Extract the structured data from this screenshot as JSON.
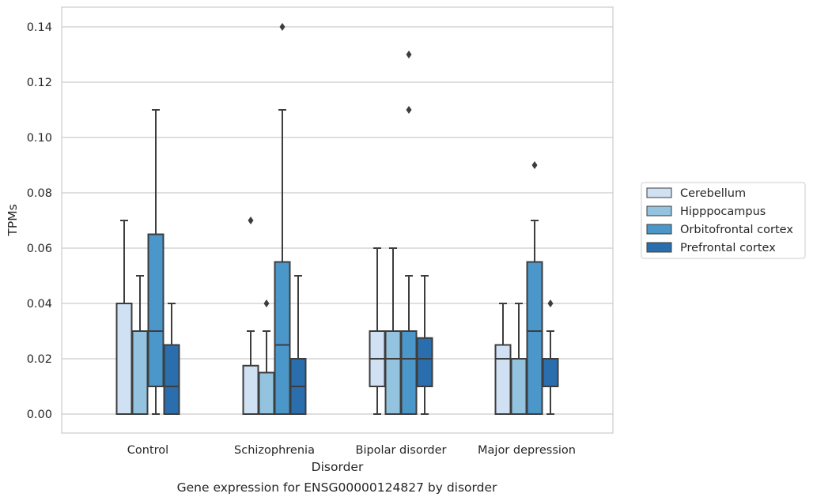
{
  "caption": "Gene expression for ENSG00000124827 by disorder",
  "chart_data": {
    "type": "boxplot",
    "xlabel": "Disorder",
    "ylabel": "TPMs",
    "ylim": [
      -0.007,
      0.147
    ],
    "yticks": [
      "0.00",
      "0.02",
      "0.04",
      "0.06",
      "0.08",
      "0.10",
      "0.12",
      "0.14"
    ],
    "grid": "horizontal",
    "legend_position": "right",
    "categories": [
      "Control",
      "Schizophrenia",
      "Bipolar disorder",
      "Major depression"
    ],
    "series": [
      {
        "name": "Cerebellum",
        "color": "#cfe1f2",
        "boxes": [
          {
            "q1": 0.0,
            "median": 0.0,
            "q3": 0.04,
            "whisker_low": 0.0,
            "whisker_high": 0.07,
            "outliers": []
          },
          {
            "q1": 0.0,
            "median": 0.0,
            "q3": 0.0175,
            "whisker_low": 0.0,
            "whisker_high": 0.03,
            "outliers": [
              0.07
            ]
          },
          {
            "q1": 0.01,
            "median": 0.02,
            "q3": 0.03,
            "whisker_low": 0.0,
            "whisker_high": 0.06,
            "outliers": []
          },
          {
            "q1": 0.0,
            "median": 0.02,
            "q3": 0.025,
            "whisker_low": 0.0,
            "whisker_high": 0.04,
            "outliers": []
          }
        ]
      },
      {
        "name": "Hipppocampus",
        "color": "#93c3df",
        "boxes": [
          {
            "q1": 0.0,
            "median": 0.0,
            "q3": 0.03,
            "whisker_low": 0.0,
            "whisker_high": 0.05,
            "outliers": []
          },
          {
            "q1": 0.0,
            "median": 0.0,
            "q3": 0.015,
            "whisker_low": 0.0,
            "whisker_high": 0.03,
            "outliers": [
              0.04
            ]
          },
          {
            "q1": 0.0,
            "median": 0.02,
            "q3": 0.03,
            "whisker_low": 0.0,
            "whisker_high": 0.06,
            "outliers": []
          },
          {
            "q1": 0.0,
            "median": 0.0,
            "q3": 0.02,
            "whisker_low": 0.0,
            "whisker_high": 0.04,
            "outliers": []
          }
        ]
      },
      {
        "name": "Orbitofrontal cortex",
        "color": "#4b97c9",
        "boxes": [
          {
            "q1": 0.01,
            "median": 0.03,
            "q3": 0.065,
            "whisker_low": 0.0,
            "whisker_high": 0.11,
            "outliers": []
          },
          {
            "q1": 0.0,
            "median": 0.025,
            "q3": 0.055,
            "whisker_low": 0.0,
            "whisker_high": 0.11,
            "outliers": [
              0.14
            ]
          },
          {
            "q1": 0.0,
            "median": 0.02,
            "q3": 0.03,
            "whisker_low": 0.0,
            "whisker_high": 0.05,
            "outliers": [
              0.11,
              0.13
            ]
          },
          {
            "q1": 0.0,
            "median": 0.03,
            "q3": 0.055,
            "whisker_low": 0.0,
            "whisker_high": 0.07,
            "outliers": [
              0.09
            ]
          }
        ]
      },
      {
        "name": "Prefrontal cortex",
        "color": "#2a6ead",
        "boxes": [
          {
            "q1": 0.0,
            "median": 0.01,
            "q3": 0.025,
            "whisker_low": 0.0,
            "whisker_high": 0.04,
            "outliers": []
          },
          {
            "q1": 0.0,
            "median": 0.01,
            "q3": 0.02,
            "whisker_low": 0.0,
            "whisker_high": 0.05,
            "outliers": []
          },
          {
            "q1": 0.01,
            "median": 0.02,
            "q3": 0.0275,
            "whisker_low": 0.0,
            "whisker_high": 0.05,
            "outliers": []
          },
          {
            "q1": 0.01,
            "median": 0.01,
            "q3": 0.02,
            "whisker_low": 0.0,
            "whisker_high": 0.03,
            "outliers": [
              0.04
            ]
          }
        ]
      }
    ]
  }
}
